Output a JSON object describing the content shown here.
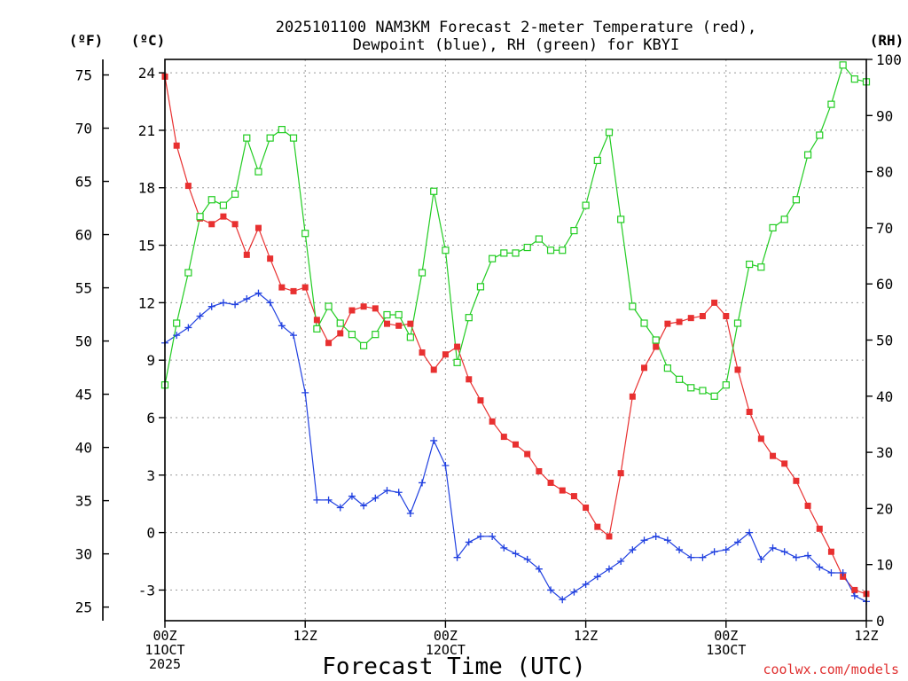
{
  "chart_data": {
    "type": "line",
    "title_line1": "2025101100 NAM3KM Forecast 2-meter Temperature (red),",
    "title_line2": "Dewpoint (blue), RH (green) for KBYI",
    "xlabel": "Forecast Time (UTC)",
    "credit": "coolwx.com/models",
    "left_outer_unit": "(ºF)",
    "left_inner_unit": "(ºC)",
    "right_unit": "(RH)",
    "x_range_hours": [
      0,
      60
    ],
    "x_ticks": [
      {
        "hour": 0,
        "lines": [
          "00Z",
          "11OCT",
          "2025"
        ]
      },
      {
        "hour": 12,
        "lines": [
          "12Z"
        ]
      },
      {
        "hour": 24,
        "lines": [
          "00Z",
          "12OCT"
        ]
      },
      {
        "hour": 36,
        "lines": [
          "12Z"
        ]
      },
      {
        "hour": 48,
        "lines": [
          "00Z",
          "13OCT"
        ]
      },
      {
        "hour": 60,
        "lines": [
          "12Z"
        ]
      }
    ],
    "celsius_range": [
      -4.6,
      24.7
    ],
    "celsius_ticks": [
      "-3",
      "0",
      "3",
      "6",
      "9",
      "12",
      "15",
      "18",
      "21",
      "24"
    ],
    "fahrenheit_ticks": [
      "25",
      "30",
      "35",
      "40",
      "45",
      "50",
      "55",
      "60",
      "65",
      "70",
      "75"
    ],
    "rh_range": [
      0,
      100
    ],
    "rh_ticks": [
      "0",
      "10",
      "20",
      "30",
      "40",
      "50",
      "60",
      "70",
      "80",
      "90",
      "100"
    ],
    "series": [
      {
        "name": "2-meter Temperature",
        "axis": "celsius",
        "color": "#e83030",
        "marker": "square-filled",
        "hours": [
          0,
          1,
          2,
          3,
          4,
          5,
          6,
          7,
          8,
          9,
          10,
          11,
          12,
          13,
          14,
          15,
          16,
          17,
          18,
          19,
          20,
          21,
          22,
          23,
          24,
          25,
          26,
          27,
          28,
          29,
          30,
          31,
          32,
          33,
          34,
          35,
          36,
          37,
          38,
          39,
          40,
          41,
          42,
          43,
          44,
          45,
          46,
          47,
          48,
          49,
          50,
          51,
          52,
          53,
          54,
          55,
          56,
          57,
          58,
          59,
          60
        ],
        "values": [
          23.8,
          20.2,
          18.1,
          16.4,
          16.1,
          16.5,
          16.1,
          14.5,
          15.9,
          14.3,
          12.8,
          12.6,
          12.8,
          11.1,
          9.9,
          10.4,
          11.6,
          11.8,
          11.7,
          10.9,
          10.8,
          10.9,
          9.4,
          8.5,
          9.3,
          9.7,
          8.0,
          6.9,
          5.8,
          5.0,
          4.6,
          4.1,
          3.2,
          2.6,
          2.2,
          1.9,
          1.3,
          0.3,
          -0.2,
          3.1,
          7.1,
          8.6,
          9.7,
          10.9,
          11.0,
          11.2,
          11.3,
          12.0,
          11.3,
          8.5,
          6.3,
          4.9,
          4.0,
          3.6,
          2.7,
          1.4,
          0.2,
          -1.0,
          -2.3,
          -3.0,
          -3.2
        ]
      },
      {
        "name": "Dewpoint",
        "axis": "celsius",
        "color": "#2040e0",
        "marker": "plus",
        "hours": [
          0,
          1,
          2,
          3,
          4,
          5,
          6,
          7,
          8,
          9,
          10,
          11,
          12,
          13,
          14,
          15,
          16,
          17,
          18,
          19,
          20,
          21,
          22,
          23,
          24,
          25,
          26,
          27,
          28,
          29,
          30,
          31,
          32,
          33,
          34,
          35,
          36,
          37,
          38,
          39,
          40,
          41,
          42,
          43,
          44,
          45,
          46,
          47,
          48,
          49,
          50,
          51,
          52,
          53,
          54,
          55,
          56,
          57,
          58,
          59,
          60
        ],
        "values": [
          9.9,
          10.3,
          10.7,
          11.3,
          11.8,
          12.0,
          11.9,
          12.2,
          12.5,
          12.0,
          10.8,
          10.3,
          7.3,
          1.7,
          1.7,
          1.3,
          1.9,
          1.4,
          1.8,
          2.2,
          2.1,
          1.0,
          2.6,
          4.8,
          3.5,
          -1.3,
          -0.5,
          -0.2,
          -0.2,
          -0.8,
          -1.1,
          -1.4,
          -1.9,
          -3.0,
          -3.5,
          -3.1,
          -2.7,
          -2.3,
          -1.9,
          -1.5,
          -0.9,
          -0.4,
          -0.2,
          -0.4,
          -0.9,
          -1.3,
          -1.3,
          -1.0,
          -0.9,
          -0.5,
          0.0,
          -1.4,
          -0.8,
          -1.0,
          -1.3,
          -1.2,
          -1.8,
          -2.1,
          -2.1,
          -3.3,
          -3.6
        ]
      },
      {
        "name": "Relative Humidity",
        "axis": "rh",
        "color": "#22cc22",
        "marker": "square-open",
        "hours": [
          0,
          1,
          2,
          3,
          4,
          5,
          6,
          7,
          8,
          9,
          10,
          11,
          12,
          13,
          14,
          15,
          16,
          17,
          18,
          19,
          20,
          21,
          22,
          23,
          24,
          25,
          26,
          27,
          28,
          29,
          30,
          31,
          32,
          33,
          34,
          35,
          36,
          37,
          38,
          39,
          40,
          41,
          42,
          43,
          44,
          45,
          46,
          47,
          48,
          49,
          50,
          51,
          52,
          53,
          54,
          55,
          56,
          57,
          58,
          59,
          60
        ],
        "values": [
          42,
          53,
          62,
          72,
          75,
          74,
          76,
          86,
          80,
          86,
          87.5,
          86,
          69,
          52,
          56,
          53,
          51,
          49,
          51,
          54.5,
          54.5,
          50.5,
          62,
          76.5,
          66,
          46,
          54,
          59.5,
          64.5,
          65.5,
          65.5,
          66.5,
          68,
          66,
          66,
          69.5,
          74,
          82,
          87,
          71.5,
          56,
          53,
          50,
          45,
          43,
          41.5,
          41,
          40,
          42,
          53,
          63.5,
          63,
          70,
          71.5,
          75,
          83,
          86.5,
          92,
          99,
          96.5,
          96
        ]
      }
    ]
  }
}
